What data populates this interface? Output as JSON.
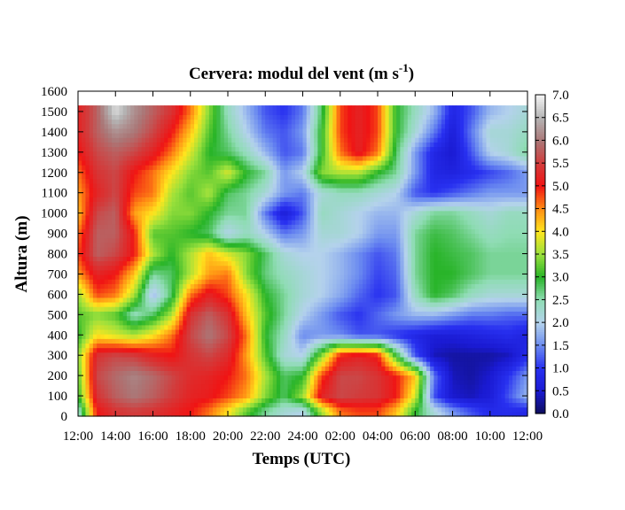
{
  "chart_data": {
    "type": "heatmap",
    "title": "Cervera: modul del vent (m s",
    "title_superscript": "-1",
    "title_suffix": ")",
    "xlabel": "Temps (UTC)",
    "ylabel": "Altura (m)",
    "x_ticks": [
      "12:00",
      "14:00",
      "16:00",
      "18:00",
      "20:00",
      "22:00",
      "24:00",
      "02:00",
      "04:00",
      "06:00",
      "08:00",
      "10:00",
      "12:00"
    ],
    "y_ticks": [
      "0",
      "100",
      "200",
      "300",
      "400",
      "500",
      "600",
      "700",
      "800",
      "900",
      "1000",
      "1100",
      "1200",
      "1300",
      "1400",
      "1500",
      "1600"
    ],
    "ylim": [
      0,
      1600
    ],
    "data_top_m": 1530,
    "colorbar_ticks": [
      "0.0",
      "0.5",
      "1.0",
      "1.5",
      "2.0",
      "2.5",
      "3.0",
      "3.5",
      "4.0",
      "4.5",
      "5.0",
      "5.5",
      "6.0",
      "6.5",
      "7.0"
    ],
    "zlim": [
      0.0,
      7.0
    ],
    "colormap": [
      {
        "v": 0.0,
        "color": "#0d0d5a"
      },
      {
        "v": 0.5,
        "color": "#1a1ad2"
      },
      {
        "v": 1.0,
        "color": "#2830f0"
      },
      {
        "v": 1.5,
        "color": "#6c8cf0"
      },
      {
        "v": 2.0,
        "color": "#b4d2ec"
      },
      {
        "v": 2.5,
        "color": "#8fdcb4"
      },
      {
        "v": 3.0,
        "color": "#28b428"
      },
      {
        "v": 3.5,
        "color": "#9ae03c"
      },
      {
        "v": 4.0,
        "color": "#ffe61e"
      },
      {
        "v": 4.5,
        "color": "#ff8c14"
      },
      {
        "v": 5.0,
        "color": "#f01414"
      },
      {
        "v": 5.5,
        "color": "#d23c3c"
      },
      {
        "v": 6.0,
        "color": "#aa7878"
      },
      {
        "v": 6.5,
        "color": "#b4b4b4"
      },
      {
        "v": 7.0,
        "color": "#f5f5f5"
      }
    ],
    "time_hours": [
      0,
      1,
      2,
      3,
      4,
      5,
      6,
      7,
      8,
      9,
      10,
      11,
      12,
      13,
      14,
      15,
      16,
      17,
      18,
      19,
      20,
      21,
      22,
      23,
      24
    ],
    "heights_m": [
      25,
      100,
      200,
      300,
      400,
      500,
      600,
      700,
      800,
      900,
      1000,
      1100,
      1200,
      1300,
      1400,
      1500
    ],
    "values": [
      [
        2.2,
        5.0,
        5.4,
        5.5,
        5.4,
        5.2,
        5.0,
        4.6,
        4.0,
        3.2,
        2.6,
        2.2,
        2.0,
        3.5,
        4.6,
        4.8,
        4.8,
        4.2,
        3.0,
        2.2,
        1.6,
        1.2,
        0.9,
        0.9,
        0.8
      ],
      [
        3.0,
        5.4,
        5.8,
        6.0,
        5.8,
        5.5,
        5.2,
        5.1,
        4.8,
        4.4,
        3.4,
        2.8,
        3.5,
        5.2,
        5.6,
        5.5,
        5.4,
        5.0,
        3.8,
        1.2,
        0.5,
        0.4,
        0.6,
        1.2,
        1.8
      ],
      [
        3.2,
        5.6,
        5.9,
        6.1,
        5.9,
        5.6,
        5.3,
        5.2,
        5.0,
        4.6,
        3.6,
        2.8,
        3.0,
        4.8,
        5.6,
        5.6,
        5.4,
        5.0,
        4.2,
        1.4,
        0.4,
        0.3,
        0.5,
        1.0,
        1.6
      ],
      [
        3.4,
        5.4,
        5.6,
        5.5,
        5.2,
        5.0,
        5.4,
        5.6,
        5.3,
        4.4,
        3.2,
        2.2,
        2.0,
        3.4,
        5.0,
        5.2,
        5.0,
        3.0,
        1.2,
        0.4,
        0.3,
        0.3,
        0.3,
        0.4,
        0.9
      ],
      [
        3.0,
        4.0,
        3.8,
        3.6,
        4.0,
        4.6,
        5.6,
        6.0,
        5.6,
        4.6,
        3.0,
        2.4,
        1.5,
        1.6,
        1.5,
        1.2,
        1.2,
        1.0,
        0.8,
        0.6,
        0.6,
        0.7,
        0.8,
        0.9,
        0.7
      ],
      [
        3.2,
        3.4,
        3.2,
        2.4,
        2.8,
        3.6,
        5.4,
        5.8,
        5.4,
        4.2,
        3.2,
        2.6,
        2.0,
        1.6,
        1.2,
        1.0,
        1.3,
        1.6,
        1.8,
        1.8,
        1.6,
        1.4,
        1.4,
        1.3,
        1.3
      ],
      [
        3.5,
        4.8,
        4.6,
        3.6,
        1.8,
        2.8,
        4.6,
        5.2,
        4.8,
        4.0,
        3.0,
        2.6,
        2.2,
        2.0,
        1.7,
        1.3,
        1.0,
        1.2,
        2.4,
        3.0,
        2.8,
        2.4,
        2.2,
        2.2,
        2.2
      ],
      [
        4.4,
        5.2,
        5.0,
        4.2,
        2.6,
        2.8,
        3.6,
        4.4,
        4.6,
        3.4,
        2.7,
        2.4,
        2.2,
        2.0,
        1.8,
        1.5,
        1.1,
        1.3,
        2.6,
        3.0,
        3.0,
        2.8,
        2.6,
        2.6,
        2.6
      ],
      [
        4.8,
        5.8,
        5.6,
        5.0,
        3.6,
        3.0,
        3.6,
        4.2,
        3.8,
        3.4,
        2.8,
        2.2,
        2.0,
        2.0,
        1.8,
        1.5,
        1.2,
        1.4,
        2.6,
        3.0,
        2.9,
        2.8,
        2.6,
        2.6,
        2.6
      ],
      [
        4.6,
        5.8,
        5.8,
        5.0,
        3.2,
        3.2,
        3.0,
        2.8,
        2.0,
        2.4,
        2.0,
        1.4,
        1.6,
        2.2,
        2.2,
        2.0,
        1.6,
        1.6,
        2.6,
        2.9,
        2.8,
        2.6,
        2.4,
        2.5,
        2.5
      ],
      [
        4.2,
        5.6,
        5.8,
        4.4,
        4.0,
        3.4,
        3.4,
        3.0,
        2.6,
        2.6,
        1.4,
        0.6,
        1.2,
        2.4,
        2.2,
        2.0,
        1.8,
        1.8,
        2.2,
        2.6,
        2.6,
        2.4,
        2.2,
        2.4,
        2.4
      ],
      [
        4.4,
        5.2,
        5.6,
        4.8,
        4.6,
        3.6,
        3.2,
        3.6,
        2.8,
        2.6,
        2.2,
        1.6,
        1.4,
        2.2,
        2.4,
        2.4,
        2.2,
        2.0,
        1.2,
        1.0,
        1.2,
        1.4,
        1.6,
        1.6,
        1.6
      ],
      [
        4.6,
        5.4,
        5.6,
        5.0,
        4.6,
        4.0,
        3.4,
        3.2,
        3.8,
        3.0,
        2.6,
        1.6,
        2.0,
        3.4,
        3.6,
        3.6,
        3.0,
        2.6,
        1.6,
        0.8,
        0.7,
        0.9,
        1.1,
        1.3,
        1.6
      ],
      [
        5.0,
        5.6,
        5.8,
        5.6,
        5.2,
        4.6,
        3.8,
        3.0,
        2.8,
        2.4,
        1.8,
        1.2,
        1.4,
        3.0,
        4.6,
        5.2,
        4.6,
        2.8,
        1.6,
        0.8,
        0.5,
        1.2,
        2.0,
        2.2,
        2.6
      ],
      [
        5.2,
        5.8,
        6.2,
        6.0,
        5.6,
        5.0,
        4.2,
        3.2,
        2.6,
        2.0,
        1.4,
        1.2,
        1.6,
        3.0,
        4.8,
        5.2,
        4.8,
        3.0,
        2.2,
        1.4,
        0.6,
        1.4,
        2.2,
        2.2,
        2.4
      ],
      [
        5.2,
        5.8,
        6.8,
        6.2,
        5.8,
        5.4,
        4.6,
        3.4,
        2.4,
        1.8,
        1.2,
        1.0,
        1.4,
        2.8,
        4.8,
        5.2,
        4.8,
        3.0,
        2.4,
        1.8,
        0.8,
        1.2,
        1.8,
        2.0,
        2.2
      ]
    ]
  }
}
